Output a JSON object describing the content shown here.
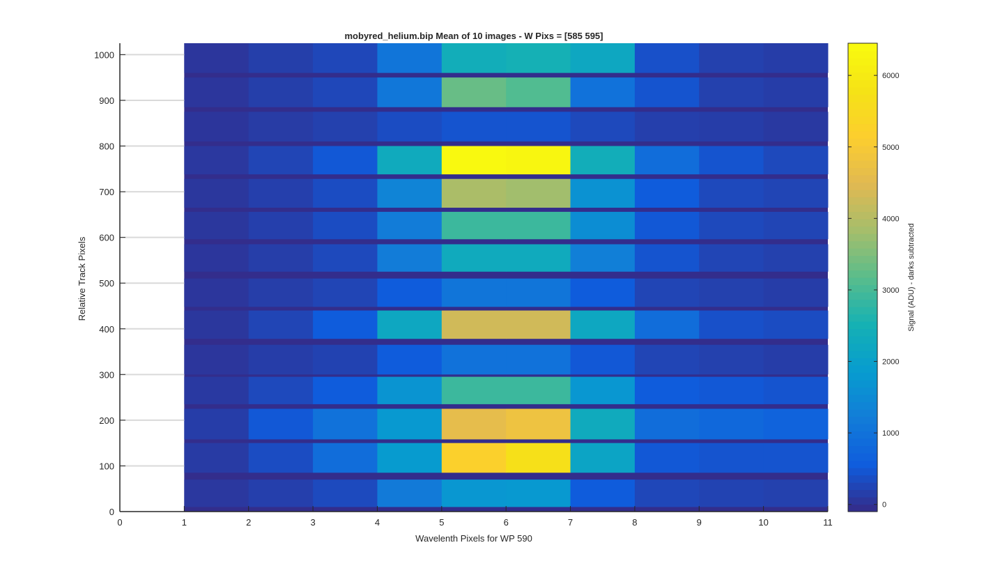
{
  "chart_data": {
    "type": "heatmap",
    "title": "mobyred_helium.bip  Mean of 10 images - W Pixs = [585  595]",
    "xlabel": "Wavelenth Pixels for WP 590",
    "ylabel": "Relative Track Pixels",
    "colorbar_label": "Signal (ADU) - darks subtracted",
    "xlim": [
      0,
      11
    ],
    "ylim": [
      0,
      1025
    ],
    "x_ticks": [
      "0",
      "1",
      "2",
      "3",
      "4",
      "5",
      "6",
      "7",
      "8",
      "9",
      "10",
      "11"
    ],
    "y_ticks": [
      "0",
      "100",
      "200",
      "300",
      "400",
      "500",
      "600",
      "700",
      "800",
      "900",
      "1000"
    ],
    "colorbar_ticks": [
      "0",
      "1000",
      "2000",
      "3000",
      "4000",
      "5000",
      "6000"
    ],
    "clim": [
      -100,
      6450
    ],
    "colormap": "parula",
    "grid": "y-major",
    "columns": [
      1,
      2,
      3,
      4,
      5,
      6,
      7,
      8,
      9,
      10
    ],
    "tracks": [
      {
        "y0": 10,
        "y1": 70,
        "values": [
          80,
          180,
          320,
          1150,
          1750,
          1800,
          550,
          280,
          230,
          200
        ]
      },
      {
        "y0": 85,
        "y1": 150,
        "values": [
          120,
          350,
          900,
          1850,
          5200,
          5700,
          2100,
          500,
          450,
          450
        ]
      },
      {
        "y0": 158,
        "y1": 225,
        "values": [
          150,
          500,
          1000,
          1800,
          4600,
          4800,
          2300,
          900,
          800,
          700
        ]
      },
      {
        "y0": 235,
        "y1": 295,
        "values": [
          100,
          300,
          550,
          1700,
          2900,
          2900,
          1750,
          550,
          500,
          450
        ]
      },
      {
        "y0": 300,
        "y1": 365,
        "values": [
          60,
          150,
          220,
          550,
          1000,
          1000,
          500,
          250,
          200,
          150
        ]
      },
      {
        "y0": 378,
        "y1": 440,
        "values": [
          70,
          250,
          550,
          2200,
          4300,
          4300,
          2200,
          900,
          400,
          350
        ]
      },
      {
        "y0": 448,
        "y1": 510,
        "values": [
          60,
          160,
          250,
          550,
          1050,
          1050,
          550,
          250,
          200,
          150
        ]
      },
      {
        "y0": 525,
        "y1": 585,
        "values": [
          60,
          160,
          300,
          1200,
          2300,
          2300,
          1250,
          450,
          250,
          200
        ]
      },
      {
        "y0": 596,
        "y1": 656,
        "values": [
          70,
          180,
          350,
          1200,
          2900,
          2900,
          1550,
          500,
          300,
          250
        ]
      },
      {
        "y0": 665,
        "y1": 728,
        "values": [
          70,
          180,
          350,
          1350,
          3900,
          3800,
          1650,
          550,
          300,
          250
        ]
      },
      {
        "y0": 738,
        "y1": 800,
        "values": [
          80,
          250,
          500,
          2300,
          6400,
          6300,
          2400,
          900,
          450,
          300
        ]
      },
      {
        "y0": 810,
        "y1": 875,
        "values": [
          50,
          130,
          200,
          350,
          450,
          450,
          300,
          180,
          150,
          100
        ]
      },
      {
        "y0": 885,
        "y1": 950,
        "values": [
          60,
          170,
          280,
          1100,
          3300,
          3100,
          1000,
          450,
          200,
          150
        ]
      },
      {
        "y0": 960,
        "y1": 1025,
        "values": [
          60,
          170,
          280,
          1050,
          2400,
          2500,
          2200,
          400,
          200,
          150
        ]
      }
    ]
  }
}
